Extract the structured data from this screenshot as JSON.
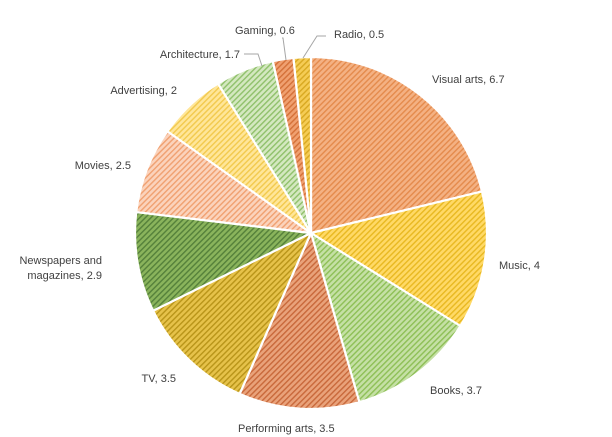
{
  "chart_data": {
    "type": "pie",
    "title": "",
    "start_angle_deg": 0,
    "direction": "clockwise",
    "slices": [
      {
        "label": "Visual arts",
        "value": 6.7,
        "display": "Visual arts, 6.7",
        "color": "#f4b183",
        "stroke": "#e48a4c"
      },
      {
        "label": "Music",
        "value": 4,
        "display": "Music, 4",
        "color": "#ffd966",
        "stroke": "#e8b820"
      },
      {
        "label": "Books",
        "value": 3.7,
        "display": "Books, 3.7",
        "color": "#c5e0a5",
        "stroke": "#8dbf55"
      },
      {
        "label": "Performing arts",
        "value": 3.5,
        "display": "Performing arts, 3.5",
        "color": "#e9a27a",
        "stroke": "#c8683a"
      },
      {
        "label": "TV",
        "value": 3.5,
        "display": "TV, 3.5",
        "color": "#e6c24a",
        "stroke": "#b89418"
      },
      {
        "label": "Newspapers and magazines",
        "value": 2.9,
        "display": [
          "Newspapers and",
          "magazines, 2.9"
        ],
        "color": "#8ab45c",
        "stroke": "#54803a"
      },
      {
        "label": "Movies",
        "value": 2.5,
        "display": "Movies, 2.5",
        "color": "#fbd3bc",
        "stroke": "#f0a070"
      },
      {
        "label": "Advertising",
        "value": 2,
        "display": "Advertising, 2",
        "color": "#ffe699",
        "stroke": "#f2c94c"
      },
      {
        "label": "Architecture",
        "value": 1.7,
        "display": "Architecture, 1.7",
        "color": "#d4e8c0",
        "stroke": "#8fc06a"
      },
      {
        "label": "Gaming",
        "value": 0.6,
        "display": "Gaming, 0.6",
        "color": "#f0a070",
        "stroke": "#d47038"
      },
      {
        "label": "Radio",
        "value": 0.5,
        "display": "Radio, 0.5",
        "color": "#f5cc55",
        "stroke": "#d8a820"
      }
    ],
    "legend": "none",
    "data_labels": "outside with leader lines"
  }
}
